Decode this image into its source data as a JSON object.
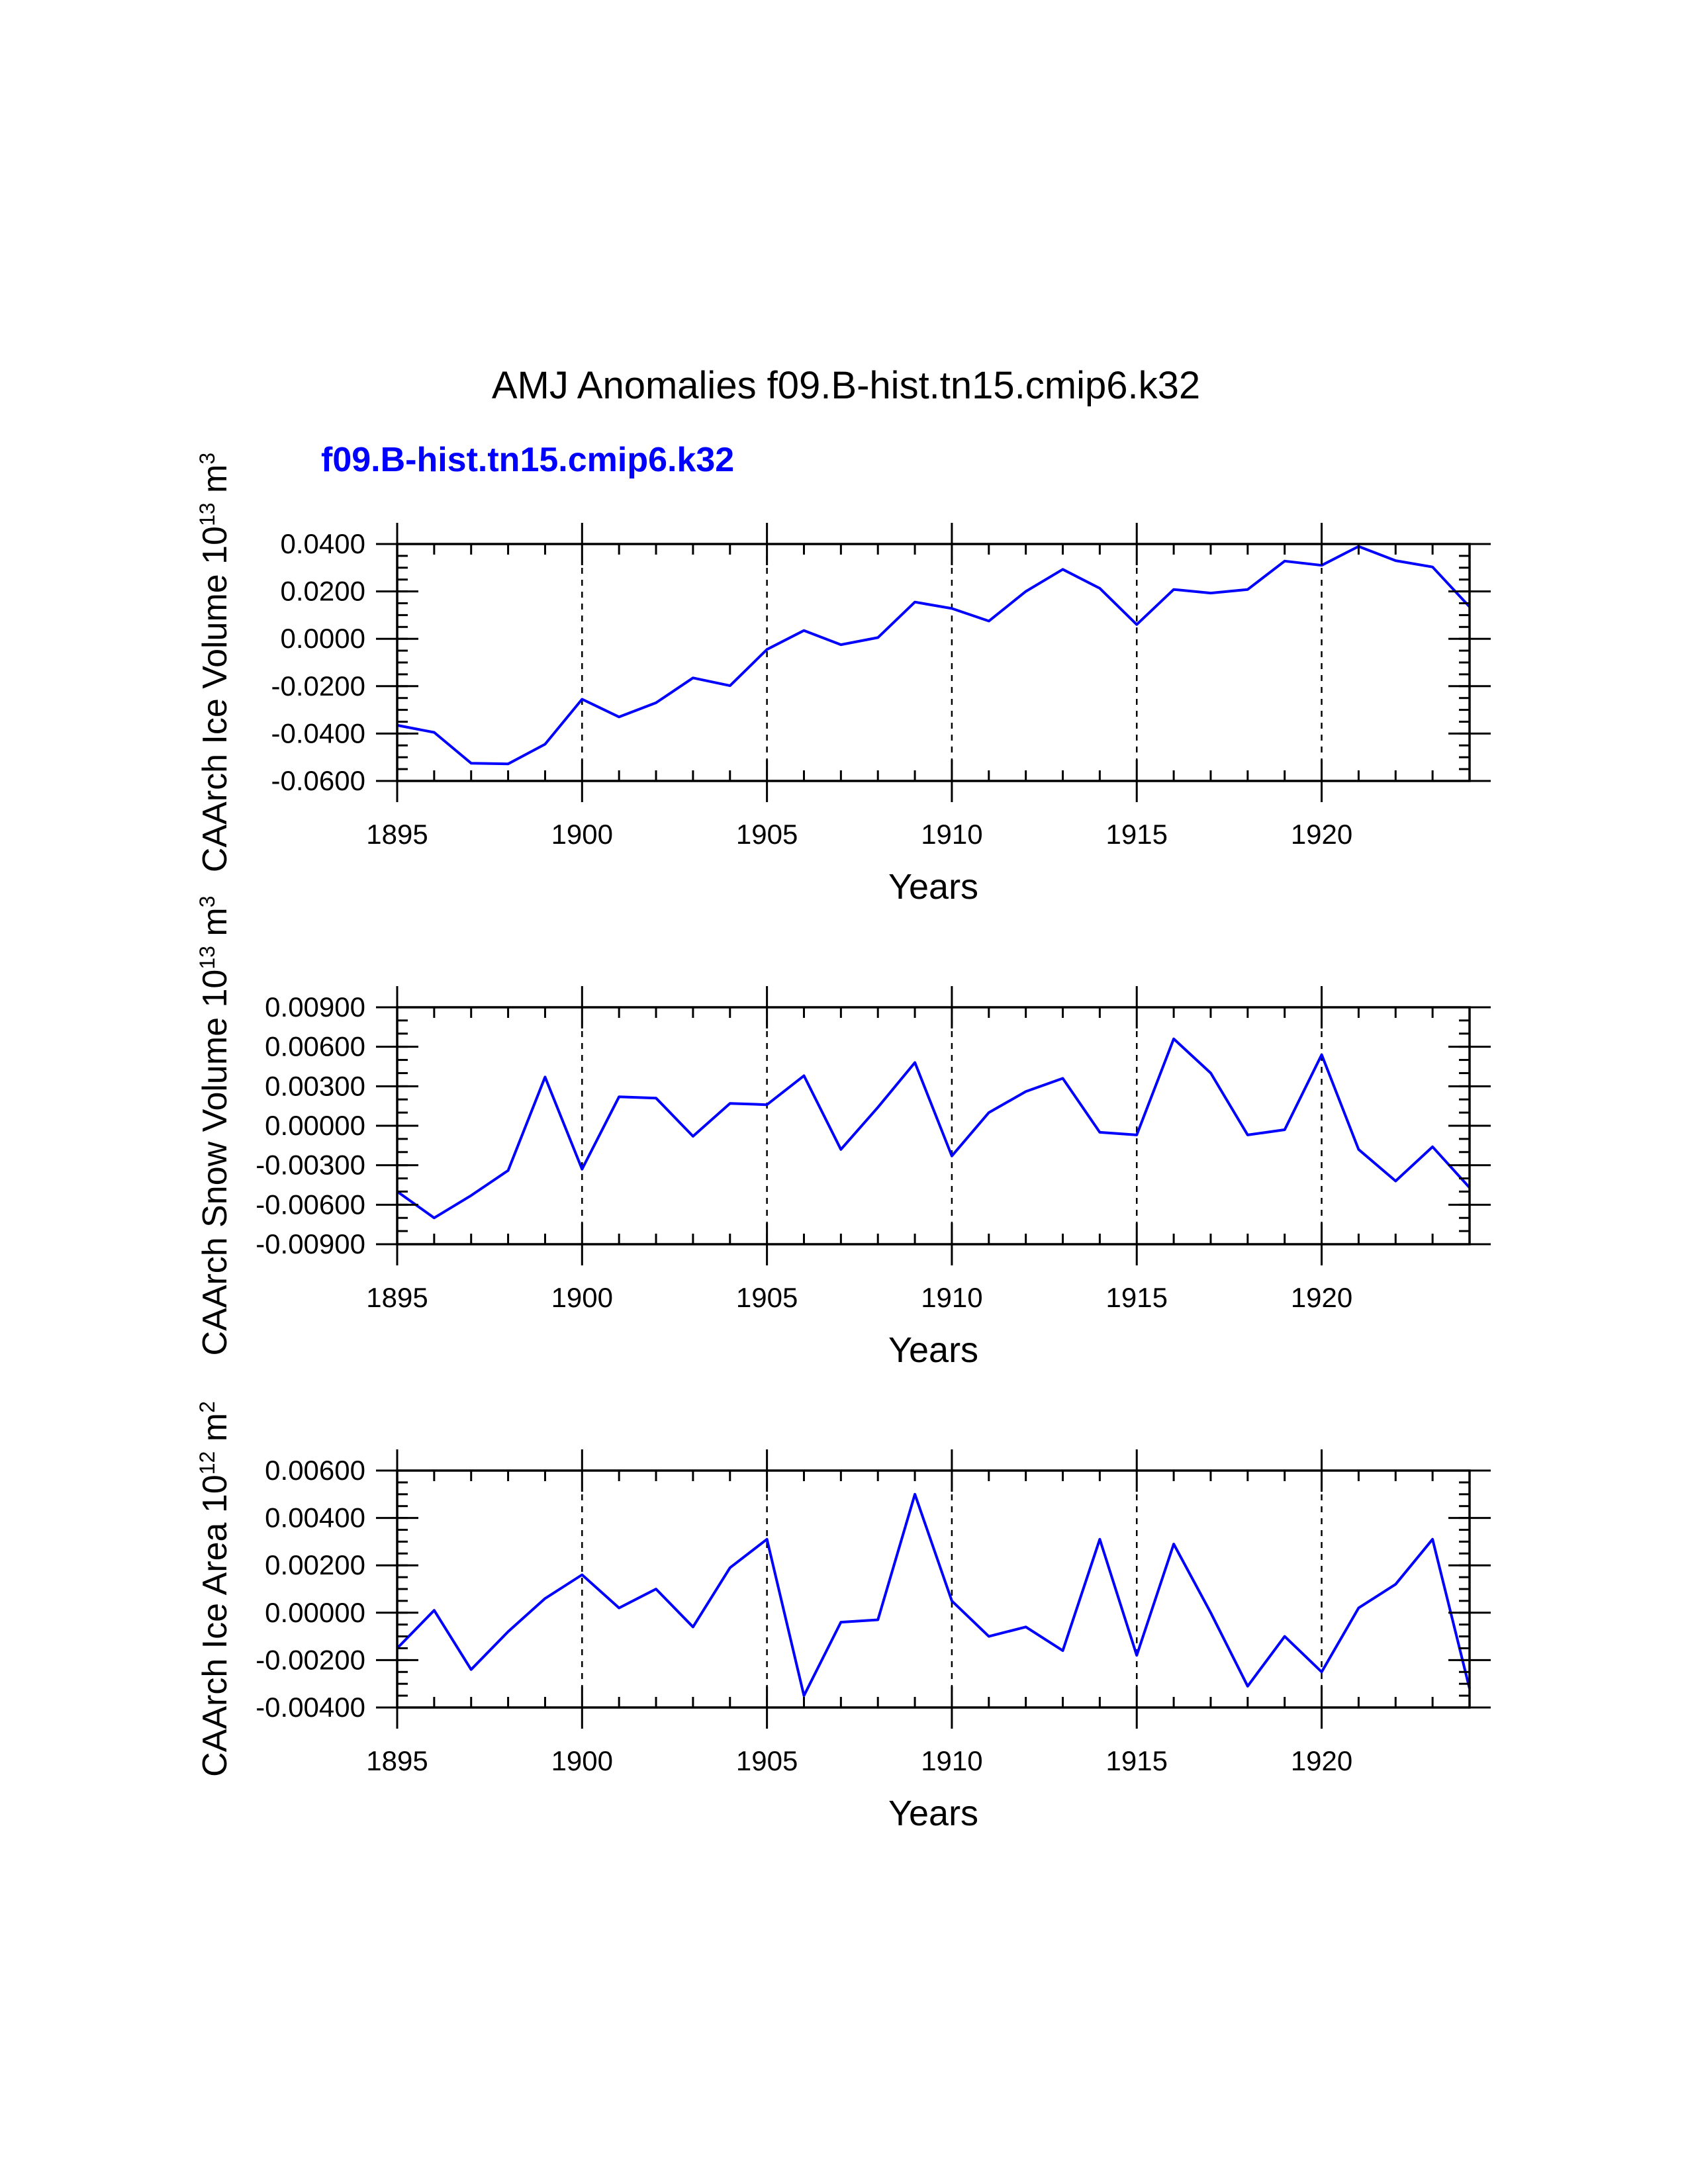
{
  "title": "AMJ Anomalies f09.B-hist.tn15.cmip6.k32",
  "legend_label": "f09.B-hist.tn15.cmip6.k32",
  "colors": {
    "series": "#0000ff",
    "axes": "#000000",
    "background": "#ffffff"
  },
  "chart_data": [
    {
      "type": "line",
      "ylabel_main": "CAArch Ice Volume 10",
      "ylabel_exp": "13",
      "ylabel_unit": " m",
      "ylabel_unit_exp": "3",
      "xlabel": "Years",
      "xlim": [
        1895,
        1924
      ],
      "ylim": [
        -0.06,
        0.04
      ],
      "x_ticks": [
        1895,
        1900,
        1905,
        1910,
        1915,
        1920
      ],
      "x_tick_labels": [
        "1895",
        "1900",
        "1905",
        "1910",
        "1915",
        "1920"
      ],
      "y_ticks": [
        -0.06,
        -0.04,
        -0.02,
        0.0,
        0.02,
        0.04
      ],
      "y_tick_labels": [
        "-0.0600",
        "-0.0400",
        "-0.0200",
        "0.0000",
        "0.0200",
        "0.0400"
      ],
      "y_minor_step": 0.005,
      "vlines": [
        1900,
        1905,
        1910,
        1915,
        1920
      ],
      "x": [
        1895,
        1896,
        1897,
        1898,
        1899,
        1900,
        1901,
        1902,
        1903,
        1904,
        1905,
        1906,
        1907,
        1908,
        1909,
        1910,
        1911,
        1912,
        1913,
        1914,
        1915,
        1916,
        1917,
        1918,
        1919,
        1920,
        1921,
        1922,
        1923,
        1924
      ],
      "series": [
        {
          "name": "f09.B-hist.tn15.cmip6.k32",
          "values": [
            -0.0365,
            -0.0395,
            -0.0525,
            -0.0528,
            -0.0445,
            -0.0255,
            -0.033,
            -0.027,
            -0.0165,
            -0.0198,
            -0.0045,
            0.0035,
            -0.0025,
            0.0005,
            0.0155,
            0.0128,
            0.0075,
            0.02,
            0.0293,
            0.0213,
            0.006,
            0.0208,
            0.0193,
            0.0208,
            0.0328,
            0.031,
            0.039,
            0.033,
            0.0303,
            0.0135
          ]
        }
      ]
    },
    {
      "type": "line",
      "ylabel_main": "CAArch Snow Volume 10",
      "ylabel_exp": "13",
      "ylabel_unit": " m",
      "ylabel_unit_exp": "3",
      "xlabel": "Years",
      "xlim": [
        1895,
        1924
      ],
      "ylim": [
        -0.009,
        0.009
      ],
      "x_ticks": [
        1895,
        1900,
        1905,
        1910,
        1915,
        1920
      ],
      "x_tick_labels": [
        "1895",
        "1900",
        "1905",
        "1910",
        "1915",
        "1920"
      ],
      "y_ticks": [
        -0.009,
        -0.006,
        -0.003,
        0.0,
        0.003,
        0.006,
        0.009
      ],
      "y_tick_labels": [
        "-0.00900",
        "-0.00600",
        "-0.00300",
        "0.00000",
        "0.00300",
        "0.00600",
        "0.00900"
      ],
      "y_minor_step": 0.001,
      "vlines": [
        1900,
        1905,
        1910,
        1915,
        1920
      ],
      "x": [
        1895,
        1896,
        1897,
        1898,
        1899,
        1900,
        1901,
        1902,
        1903,
        1904,
        1905,
        1906,
        1907,
        1908,
        1909,
        1910,
        1911,
        1912,
        1913,
        1914,
        1915,
        1916,
        1917,
        1918,
        1919,
        1920,
        1921,
        1922,
        1923,
        1924
      ],
      "series": [
        {
          "name": "f09.B-hist.tn15.cmip6.k32",
          "values": [
            -0.005,
            -0.007,
            -0.0053,
            -0.0034,
            0.0037,
            -0.0033,
            0.0022,
            0.0021,
            -0.0008,
            0.0017,
            0.0016,
            0.0038,
            -0.0018,
            0.0014,
            0.0048,
            -0.0023,
            0.001,
            0.0026,
            0.0036,
            -0.0005,
            -0.0007,
            0.0066,
            0.004,
            -0.0007,
            -0.0003,
            0.0054,
            -0.0018,
            -0.0042,
            -0.0016,
            -0.0047
          ]
        }
      ]
    },
    {
      "type": "line",
      "ylabel_main": "CAArch Ice Area 10",
      "ylabel_exp": "12",
      "ylabel_unit": " m",
      "ylabel_unit_exp": "2",
      "xlabel": "Years",
      "xlim": [
        1895,
        1924
      ],
      "ylim": [
        -0.004,
        0.006
      ],
      "x_ticks": [
        1895,
        1900,
        1905,
        1910,
        1915,
        1920
      ],
      "x_tick_labels": [
        "1895",
        "1900",
        "1905",
        "1910",
        "1915",
        "1920"
      ],
      "y_ticks": [
        -0.004,
        -0.002,
        0.0,
        0.002,
        0.004,
        0.006
      ],
      "y_tick_labels": [
        "-0.00400",
        "-0.00200",
        "0.00000",
        "0.00200",
        "0.00400",
        "0.00600"
      ],
      "y_minor_step": 0.0005,
      "vlines": [
        1900,
        1905,
        1910,
        1915,
        1920
      ],
      "x": [
        1895,
        1896,
        1897,
        1898,
        1899,
        1900,
        1901,
        1902,
        1903,
        1904,
        1905,
        1906,
        1907,
        1908,
        1909,
        1910,
        1911,
        1912,
        1913,
        1914,
        1915,
        1916,
        1917,
        1918,
        1919,
        1920,
        1921,
        1922,
        1923,
        1924
      ],
      "series": [
        {
          "name": "f09.B-hist.tn15.cmip6.k32",
          "values": [
            -0.0015,
            0.0001,
            -0.0024,
            -0.0008,
            0.0006,
            0.0016,
            0.0002,
            0.001,
            -0.0006,
            0.0019,
            0.0031,
            -0.0035,
            -0.0004,
            -0.0003,
            0.005,
            0.0005,
            -0.001,
            -0.0006,
            -0.0016,
            0.0031,
            -0.0018,
            0.0029,
            0.0,
            -0.0031,
            -0.001,
            -0.0025,
            0.0002,
            0.0012,
            0.0031,
            -0.0032
          ]
        }
      ]
    }
  ]
}
